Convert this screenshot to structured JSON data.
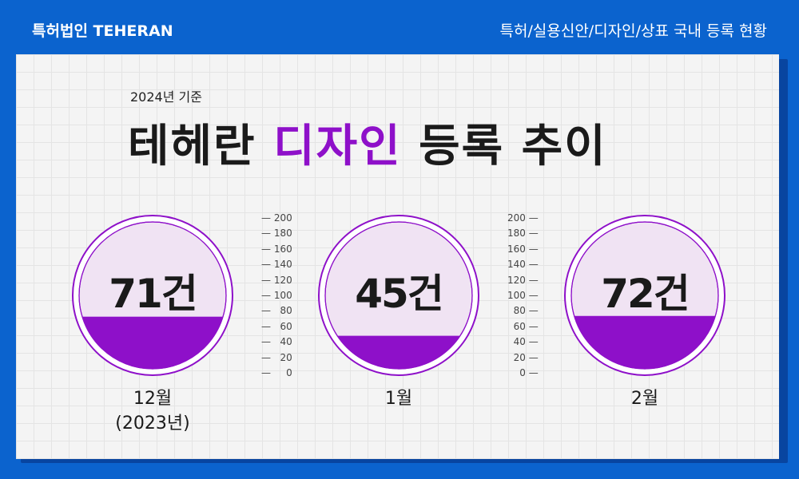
{
  "header": {
    "brand": "특허법인 TEHERAN",
    "title": "특허/실용신안/디자인/상표 국내 등록 현황"
  },
  "basis_label": "2024년 기준",
  "main_title": {
    "part1": "테헤란 ",
    "highlight": "디자인",
    "part2": " 등록 추이"
  },
  "colors": {
    "accent": "#8e10c9",
    "background": "#0b63ce",
    "gauge_empty": "#f0e3f3"
  },
  "chart_data": {
    "type": "bar",
    "categories": [
      "12월 (2023년)",
      "1월",
      "2월"
    ],
    "values": [
      71,
      45,
      72
    ],
    "display_labels": [
      "71건",
      "45건",
      "72건"
    ],
    "category_lines": [
      [
        "12월",
        "(2023년)"
      ],
      [
        "1월"
      ],
      [
        "2월"
      ]
    ],
    "ylim": [
      0,
      200
    ],
    "ticks": [
      "0",
      "20",
      "40",
      "60",
      "80",
      "100",
      "120",
      "140",
      "160",
      "180",
      "200"
    ]
  }
}
